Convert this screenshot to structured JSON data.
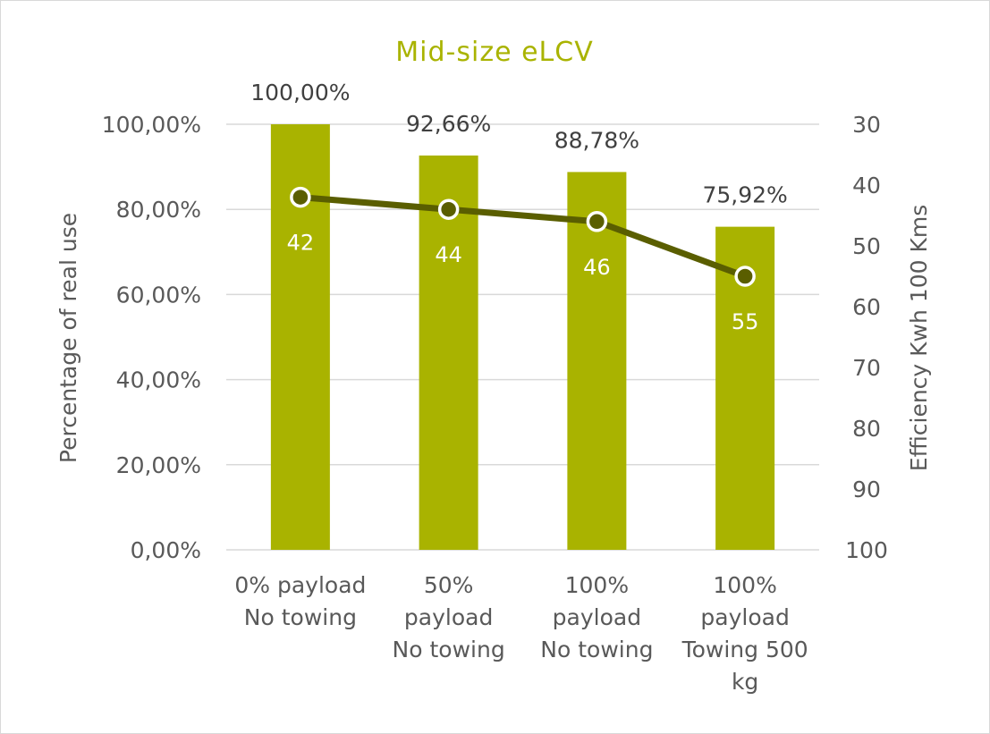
{
  "chart_data": {
    "type": "bar",
    "title": "Mid-size eLCV",
    "categories": [
      [
        "0% payload",
        "No towing"
      ],
      [
        "50%",
        "payload",
        "No towing"
      ],
      [
        "100%",
        "payload",
        "No towing"
      ],
      [
        "100%",
        "payload",
        "Towing 500",
        "kg"
      ]
    ],
    "series": [
      {
        "type": "bar",
        "axis": "left",
        "values": [
          100.0,
          92.66,
          88.78,
          75.92
        ],
        "labels": [
          "100,00%",
          "92,66%",
          "88,78%",
          "75,92%"
        ],
        "color": "#a9b300"
      },
      {
        "type": "line",
        "axis": "right",
        "values": [
          42,
          44,
          46,
          55
        ],
        "labels": [
          "42",
          "44",
          "46",
          "55"
        ],
        "color": "#5a5e00"
      }
    ],
    "y_left": {
      "label": "Percentage of real use",
      "range": [
        0,
        100
      ],
      "ticks": [
        0,
        20,
        40,
        60,
        80,
        100
      ],
      "tick_labels": [
        "0,00%",
        "20,00%",
        "40,00%",
        "60,00%",
        "80,00%",
        "100,00%"
      ]
    },
    "y_right": {
      "label": "Efficiency Kwh  100 Kms",
      "range": [
        30,
        100
      ],
      "inverted": true,
      "ticks": [
        30,
        40,
        50,
        60,
        70,
        80,
        90,
        100
      ],
      "tick_labels": [
        "30",
        "40",
        "50",
        "60",
        "70",
        "80",
        "90",
        "100"
      ]
    },
    "grid": true,
    "legend": "none",
    "colors": {
      "title": "#a9b300",
      "grid": "#d9d9d9",
      "marker_fill": "#5a5e00",
      "marker_stroke": "#ffffff"
    }
  }
}
